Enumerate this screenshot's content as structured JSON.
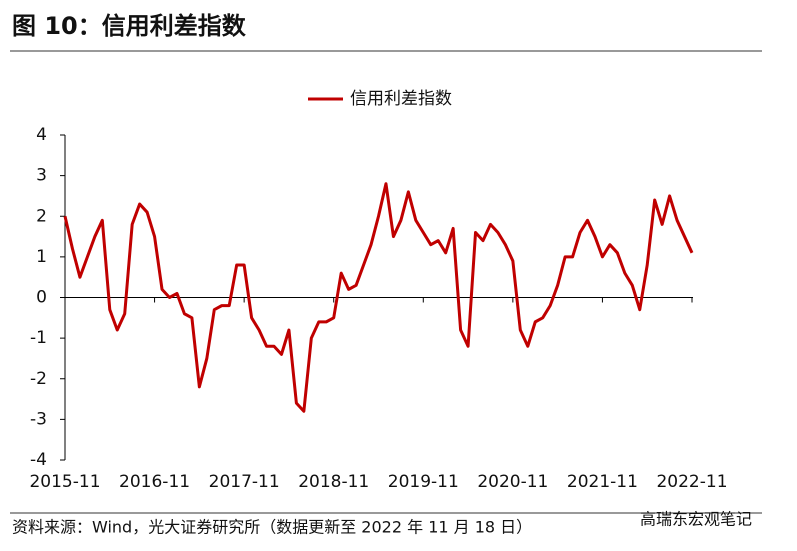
{
  "header": {
    "title": "图 10：信用利差指数"
  },
  "chart_data": {
    "type": "line",
    "x": [
      "2015-11",
      "2015-12",
      "2016-01",
      "2016-02",
      "2016-03",
      "2016-04",
      "2016-05",
      "2016-06",
      "2016-07",
      "2016-08",
      "2016-09",
      "2016-10",
      "2016-11",
      "2016-12",
      "2017-01",
      "2017-02",
      "2017-03",
      "2017-04",
      "2017-05",
      "2017-06",
      "2017-07",
      "2017-08",
      "2017-09",
      "2017-10",
      "2017-11",
      "2017-12",
      "2018-01",
      "2018-02",
      "2018-03",
      "2018-04",
      "2018-05",
      "2018-06",
      "2018-07",
      "2018-08",
      "2018-09",
      "2018-10",
      "2018-11",
      "2018-12",
      "2019-01",
      "2019-02",
      "2019-03",
      "2019-04",
      "2019-05",
      "2019-06",
      "2019-07",
      "2019-08",
      "2019-09",
      "2019-10",
      "2019-11",
      "2019-12",
      "2020-01",
      "2020-02",
      "2020-03",
      "2020-04",
      "2020-05",
      "2020-06",
      "2020-07",
      "2020-08",
      "2020-09",
      "2020-10",
      "2020-11",
      "2020-12",
      "2021-01",
      "2021-02",
      "2021-03",
      "2021-04",
      "2021-05",
      "2021-06",
      "2021-07",
      "2021-08",
      "2021-09",
      "2021-10",
      "2021-11",
      "2021-12",
      "2022-01",
      "2022-02",
      "2022-03",
      "2022-04",
      "2022-05",
      "2022-06",
      "2022-07",
      "2022-08",
      "2022-09",
      "2022-10",
      "2022-11"
    ],
    "series": [
      {
        "name": "信用利差指数",
        "color": "#c00000",
        "values": [
          2.0,
          1.2,
          0.5,
          1.0,
          1.5,
          1.9,
          -0.3,
          -0.8,
          -0.4,
          1.8,
          2.3,
          2.1,
          1.5,
          0.2,
          0.0,
          0.1,
          -0.4,
          -0.5,
          -2.2,
          -1.5,
          -0.3,
          -0.2,
          -0.2,
          0.8,
          0.8,
          -0.5,
          -0.8,
          -1.2,
          -1.2,
          -1.4,
          -0.8,
          -2.6,
          -2.8,
          -1.0,
          -0.6,
          -0.6,
          -0.5,
          0.6,
          0.2,
          0.3,
          0.8,
          1.3,
          2.0,
          2.8,
          1.5,
          1.9,
          2.6,
          1.9,
          1.6,
          1.3,
          1.4,
          1.1,
          1.7,
          -0.8,
          -1.2,
          1.6,
          1.4,
          1.8,
          1.6,
          1.3,
          0.9,
          -0.8,
          -1.2,
          -0.6,
          -0.5,
          -0.2,
          0.3,
          1.0,
          1.0,
          1.6,
          1.9,
          1.5,
          1.0,
          1.3,
          1.1,
          0.6,
          0.3,
          -0.3,
          0.8,
          2.4,
          1.8,
          2.5,
          1.9,
          1.5,
          1.1
        ]
      }
    ],
    "xticks": [
      "2015-11",
      "2016-11",
      "2017-11",
      "2018-11",
      "2019-11",
      "2020-11",
      "2021-11",
      "2022-11"
    ],
    "ylim": [
      -4,
      4
    ],
    "yticks": [
      -4,
      -3,
      -2,
      -1,
      0,
      1,
      2,
      3,
      4
    ],
    "legend": "top"
  },
  "footer": {
    "source": "资料来源：Wind，光大证券研究所（数据更新至 2022 年 11 月 18 日）",
    "watermark": "高瑞东宏观笔记"
  }
}
